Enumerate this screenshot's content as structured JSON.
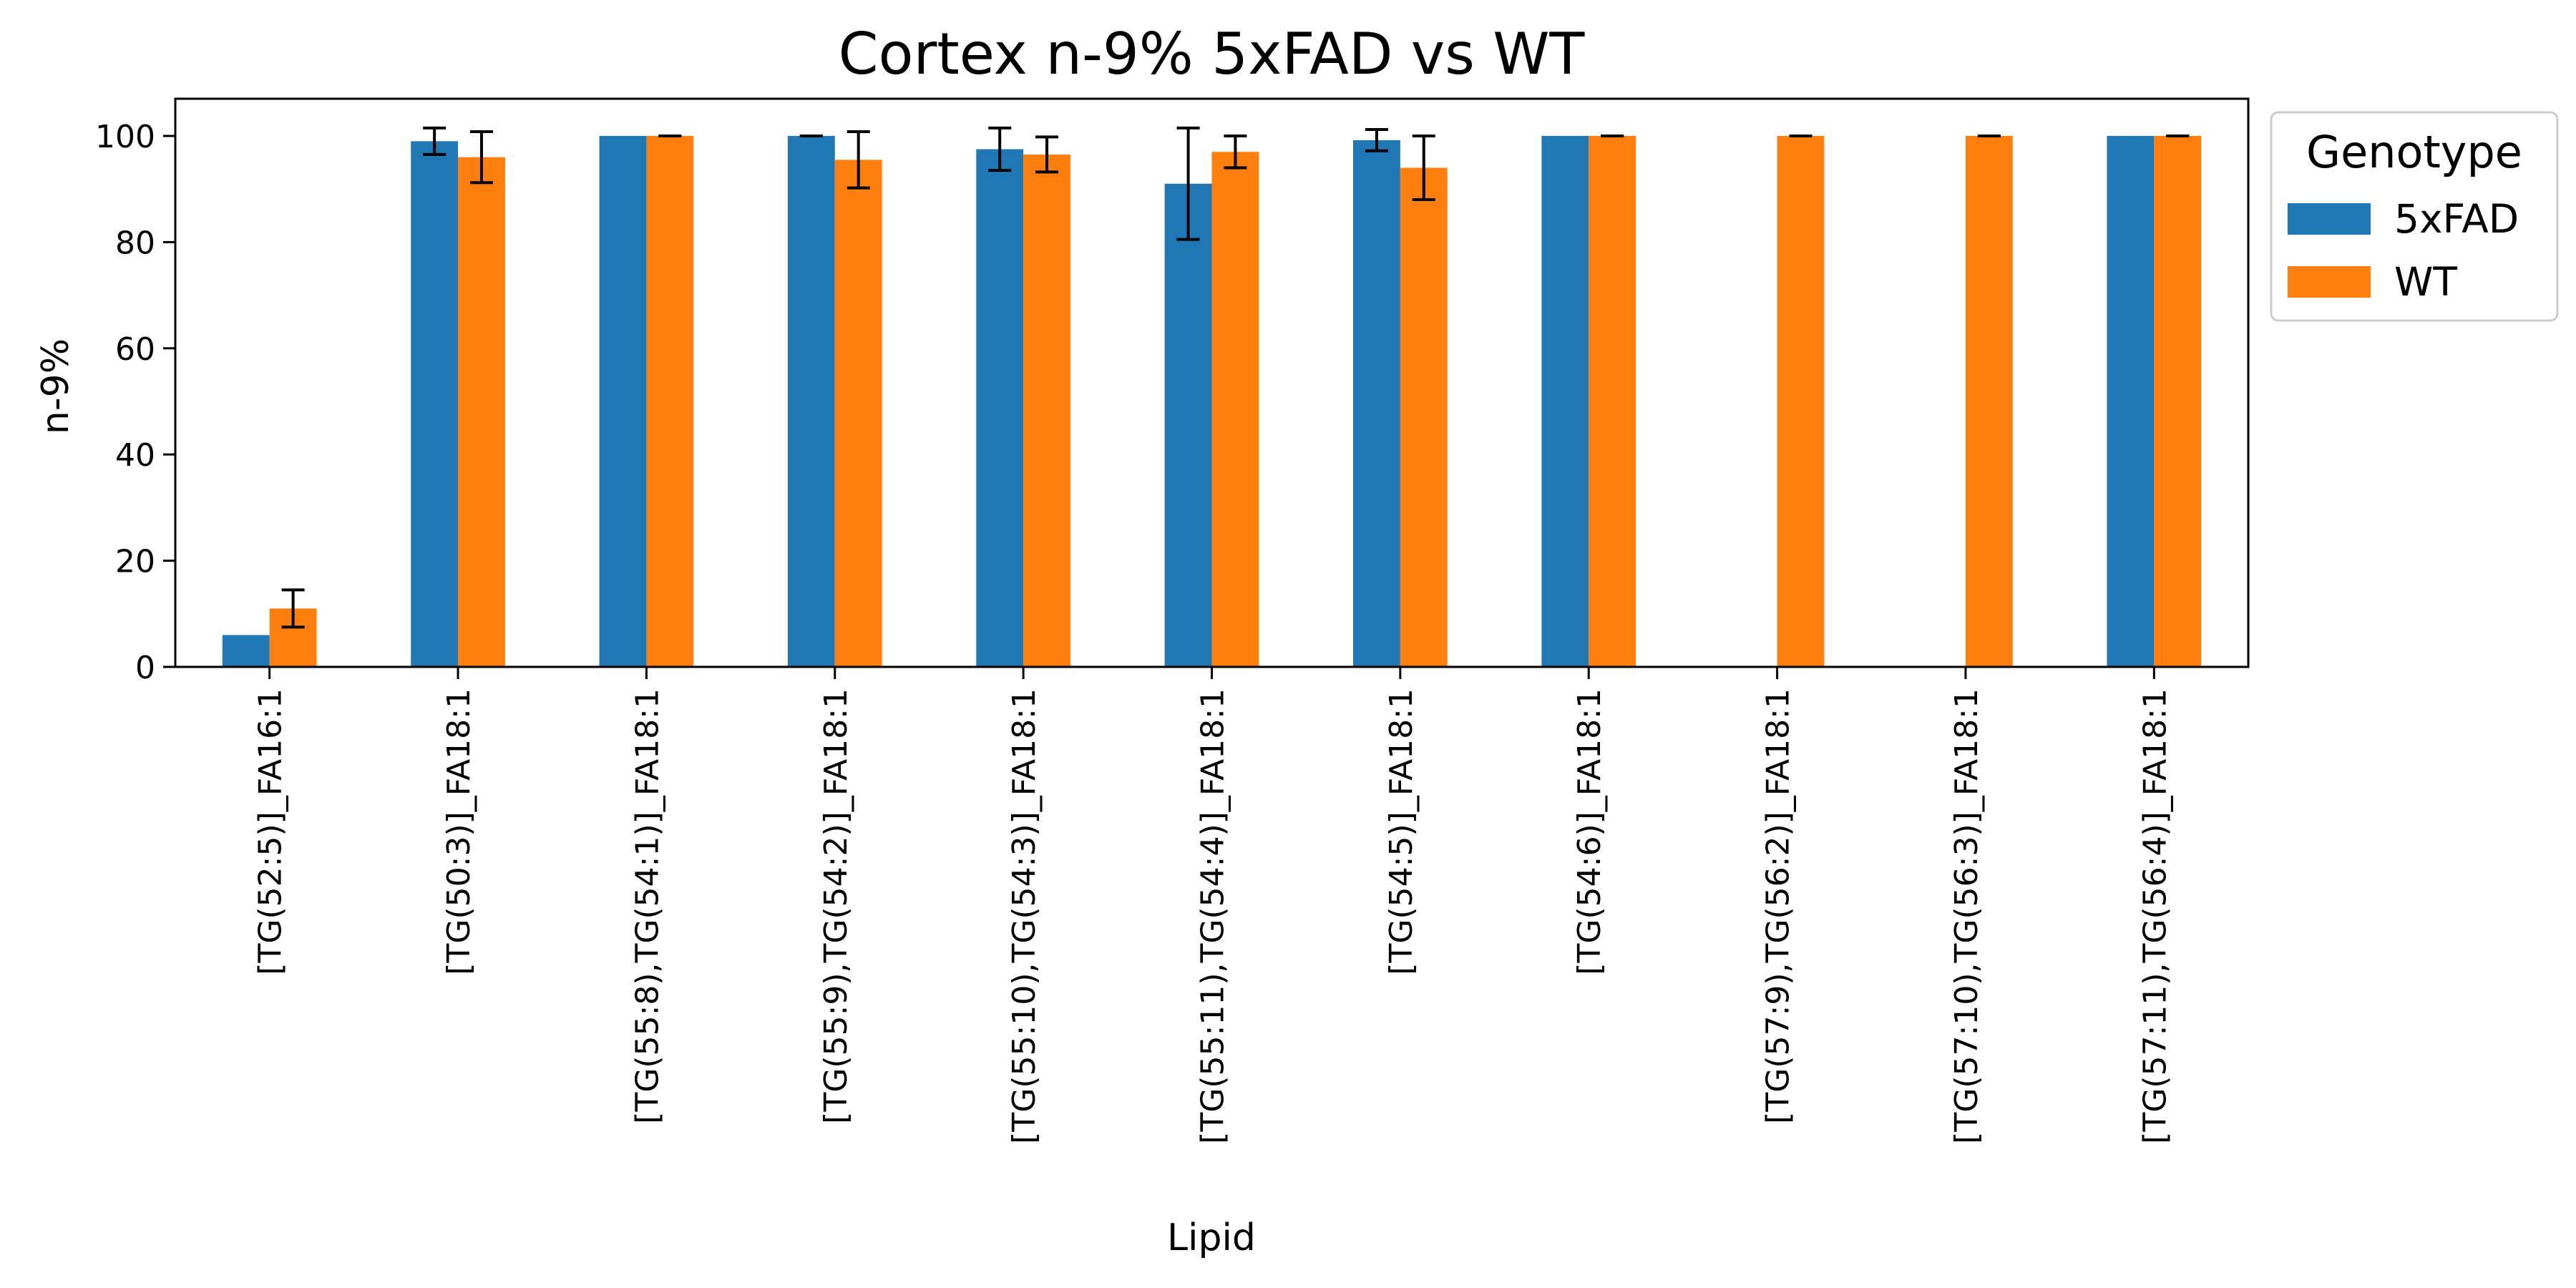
{
  "chart_data": {
    "type": "bar",
    "title": "Cortex n-9% 5xFAD vs WT",
    "xlabel": "Lipid",
    "ylabel": "n-9%",
    "ylim": [
      0,
      107
    ],
    "yticks": [
      0,
      20,
      40,
      60,
      80,
      100
    ],
    "grid": false,
    "legend": {
      "title": "Genotype",
      "placement": "outside upper right"
    },
    "categories": [
      "[TG(52:5)]_FA16:1",
      "[TG(50:3)]_FA18:1",
      "[TG(55:8),TG(54:1)]_FA18:1",
      "[TG(55:9),TG(54:2)]_FA18:1",
      "[TG(55:10),TG(54:3)]_FA18:1",
      "[TG(55:11),TG(54:4)]_FA18:1",
      "[TG(54:5)]_FA18:1",
      "[TG(54:6)]_FA18:1",
      "[TG(57:9),TG(56:2)]_FA18:1",
      "[TG(57:10),TG(56:3)]_FA18:1",
      "[TG(57:11),TG(56:4)]_FA18:1"
    ],
    "series": [
      {
        "name": "5xFAD",
        "color": "#1f77b4",
        "values": [
          6.0,
          99.0,
          100.0,
          100.0,
          97.5,
          91.0,
          99.2,
          100.0,
          null,
          null,
          100.0
        ],
        "errors": [
          null,
          2.5,
          null,
          0.0,
          4.0,
          10.5,
          2.0,
          null,
          null,
          null,
          null
        ]
      },
      {
        "name": "WT",
        "color": "#ff7f0e",
        "values": [
          11.0,
          96.0,
          100.0,
          95.5,
          96.5,
          97.0,
          94.0,
          100.0,
          100.0,
          100.0,
          100.0
        ],
        "errors": [
          3.5,
          4.8,
          0.0,
          5.3,
          3.3,
          3.0,
          6.0,
          0.0,
          0.0,
          0.0,
          0.0
        ]
      }
    ]
  }
}
